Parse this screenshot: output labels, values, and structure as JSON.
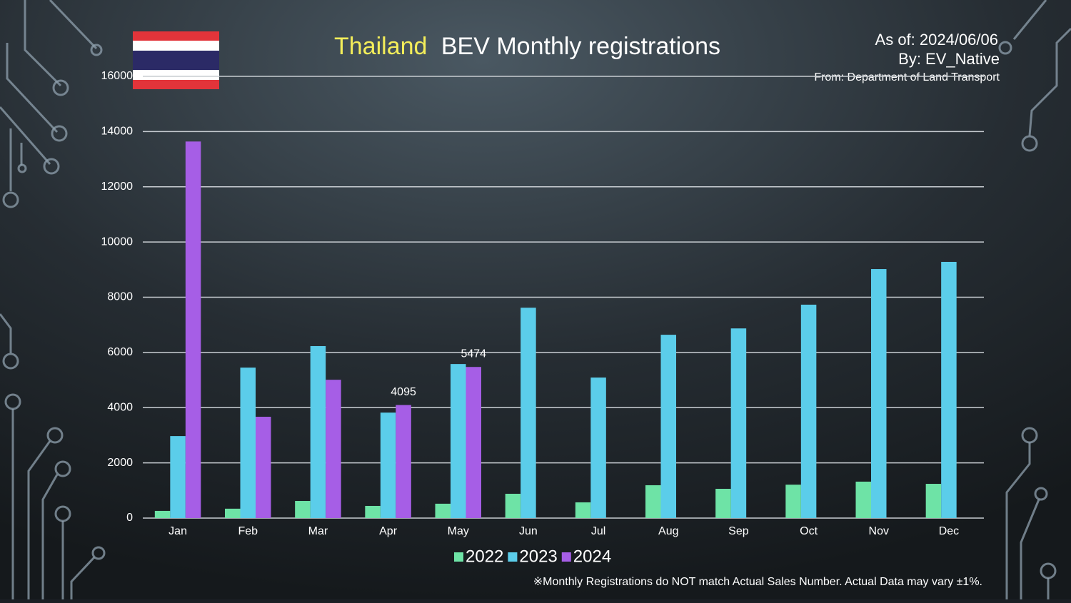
{
  "chart_data": {
    "type": "bar",
    "title": {
      "highlight": "Thailand",
      "rest": "BEV Monthly registrations"
    },
    "annotations": {
      "as_of": "As of: 2024/06/06",
      "by": "By: EV_Native",
      "source": "From: Department of Land Transport",
      "note": "※Monthly Registrations do NOT match Actual Sales Number. Actual Data may vary ±1%."
    },
    "categories": [
      "Jan",
      "Feb",
      "Mar",
      "Apr",
      "May",
      "Jun",
      "Jul",
      "Aug",
      "Sep",
      "Oct",
      "Nov",
      "Dec"
    ],
    "series": [
      {
        "name": "2022",
        "color": "#6ee3a6",
        "values": [
          260,
          340,
          620,
          440,
          520,
          880,
          570,
          1190,
          1060,
          1210,
          1320,
          1240
        ]
      },
      {
        "name": "2023",
        "color": "#5bcdea",
        "values": [
          2970,
          5450,
          6230,
          3820,
          5580,
          7620,
          5090,
          6640,
          6870,
          7730,
          9020,
          9280
        ]
      },
      {
        "name": "2024",
        "color": "#a65ee6",
        "values": [
          13640,
          3670,
          5010,
          4095,
          5474,
          null,
          null,
          null,
          null,
          null,
          null,
          null
        ],
        "value_labels": [
          null,
          null,
          null,
          "4095",
          "5474",
          null,
          null,
          null,
          null,
          null,
          null,
          null
        ]
      }
    ],
    "ylim": [
      0,
      16000
    ],
    "yticks": [
      0,
      2000,
      4000,
      6000,
      8000,
      10000,
      12000,
      14000,
      16000
    ],
    "grid": true
  }
}
